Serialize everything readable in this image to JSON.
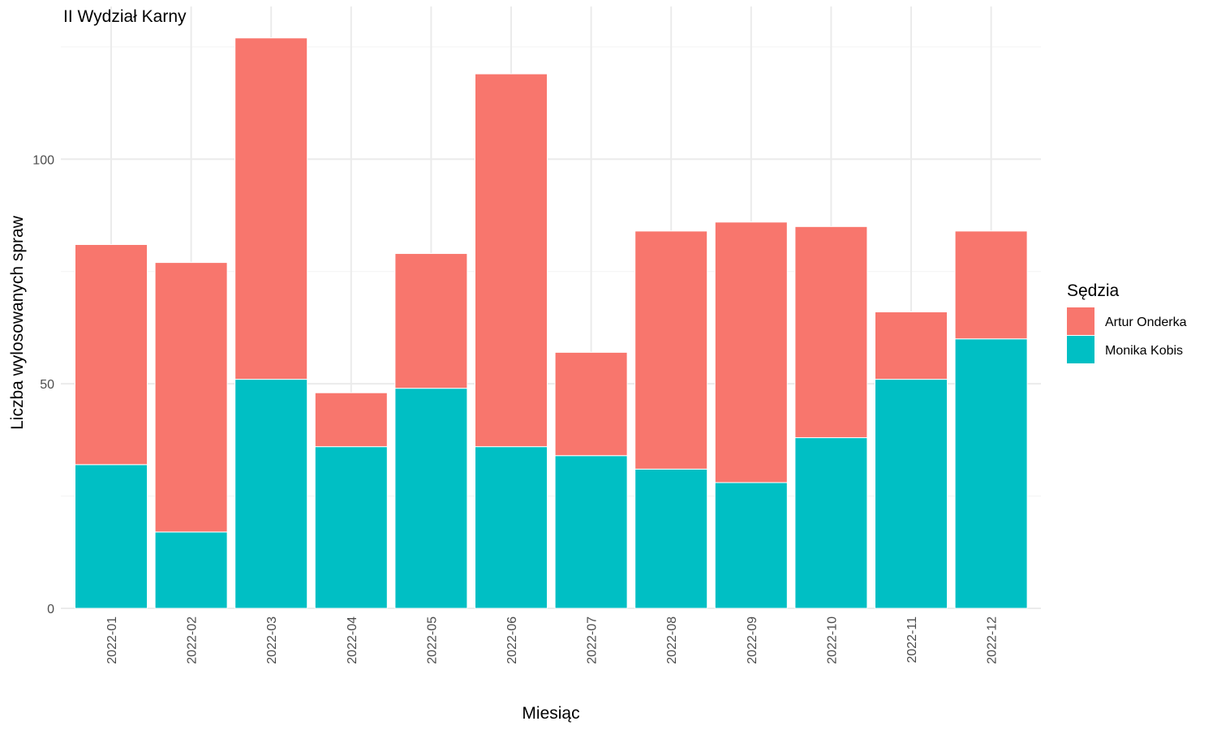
{
  "chart_data": {
    "type": "bar",
    "stacked": true,
    "title": "II Wydział Karny",
    "xlabel": "Miesiąc",
    "ylabel": "Liczba wylosowanych spraw",
    "ylim": [
      0,
      128
    ],
    "yticks": [
      0,
      50,
      100
    ],
    "ytick_labels": [
      "0",
      "50",
      "100"
    ],
    "grid": true,
    "legend": {
      "title": "Sędzia",
      "position": "right"
    },
    "categories": [
      "2022-01",
      "2022-02",
      "2022-03",
      "2022-04",
      "2022-05",
      "2022-06",
      "2022-07",
      "2022-08",
      "2022-09",
      "2022-10",
      "2022-11",
      "2022-12"
    ],
    "series": [
      {
        "name": "Monika Kobis",
        "color": "#00BFC4",
        "values": [
          32,
          17,
          51,
          36,
          49,
          36,
          34,
          31,
          28,
          38,
          51,
          60
        ]
      },
      {
        "name": "Artur Onderka",
        "color": "#F8766D",
        "values": [
          49,
          60,
          76,
          12,
          30,
          83,
          23,
          53,
          58,
          47,
          15,
          24
        ]
      }
    ],
    "legend_order": [
      "Artur Onderka",
      "Monika Kobis"
    ]
  }
}
